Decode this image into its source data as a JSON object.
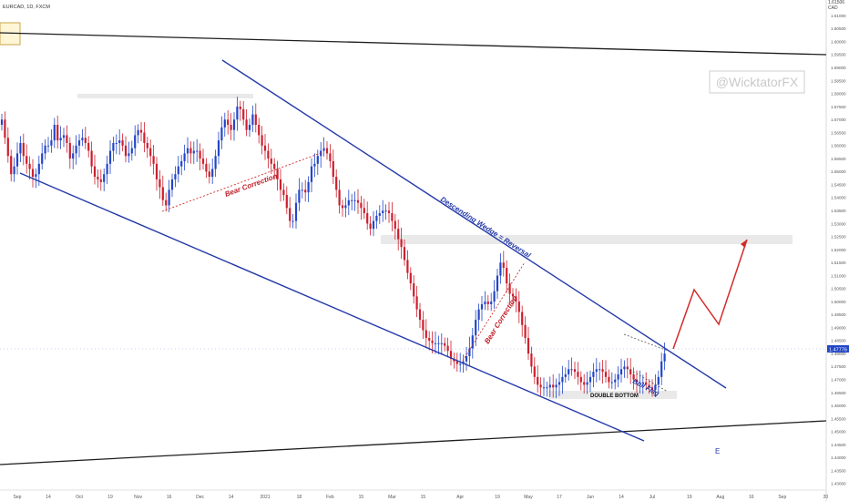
{
  "header": {
    "symbol": "EURCAD, 1D, FXCM"
  },
  "watermark": "@WicktatorFX",
  "price_axis": {
    "currency": "CAD",
    "current_price": "1.47776",
    "top_label": "1.61506"
  },
  "colors": {
    "bull": "#2346c7",
    "bear": "#cc1f2d",
    "wedge": "#2439a8",
    "projection": "#d22b2b",
    "annotation_blue": "#2439a8",
    "annotation_red": "#c0202a",
    "zone": "#e9e9e9",
    "watermark": "#c9c9c9"
  },
  "chart_data": {
    "type": "candlestick",
    "ylim": [
      1.4275,
      1.616
    ],
    "yticks": [
      1.43,
      1.435,
      1.44,
      1.445,
      1.45,
      1.455,
      1.46,
      1.465,
      1.47,
      1.475,
      1.48,
      1.485,
      1.49,
      1.495,
      1.5,
      1.505,
      1.51,
      1.515,
      1.52,
      1.525,
      1.53,
      1.535,
      1.54,
      1.545,
      1.55,
      1.555,
      1.56,
      1.565,
      1.57,
      1.575,
      1.58,
      1.585,
      1.59,
      1.595,
      1.6,
      1.605,
      1.61
    ],
    "ytick_labels": [
      "1.43000",
      "1.43500",
      "1.44000",
      "1.44500",
      "1.45000",
      "1.45500",
      "1.46000",
      "1.46500",
      "1.47000",
      "1.47500",
      "1.48000",
      "1.48500",
      "1.49000",
      "1.49500",
      "1.50000",
      "1.50500",
      "1.51000",
      "1.51500",
      "1.52000",
      "1.52500",
      "1.53000",
      "1.53500",
      "1.54000",
      "1.54500",
      "1.55000",
      "1.55500",
      "1.56000",
      "1.56500",
      "1.57000",
      "1.57500",
      "1.58000",
      "1.58500",
      "1.59000",
      "1.59500",
      "1.60000",
      "1.60500",
      "1.61000"
    ],
    "xticks": [
      {
        "label": "Sep",
        "bar": 5
      },
      {
        "label": "14",
        "bar": 15
      },
      {
        "label": "Oct",
        "bar": 25
      },
      {
        "label": "19",
        "bar": 35
      },
      {
        "label": "Nov",
        "bar": 44
      },
      {
        "label": "16",
        "bar": 54
      },
      {
        "label": "Dec",
        "bar": 64
      },
      {
        "label": "14",
        "bar": 74
      },
      {
        "label": "2021",
        "bar": 85
      },
      {
        "label": "18",
        "bar": 96
      },
      {
        "label": "Feb",
        "bar": 106
      },
      {
        "label": "15",
        "bar": 116
      },
      {
        "label": "Mar",
        "bar": 126
      },
      {
        "label": "15",
        "bar": 136
      },
      {
        "label": "Apr",
        "bar": 148
      },
      {
        "label": "19",
        "bar": 160
      },
      {
        "label": "May",
        "bar": 170
      },
      {
        "label": "17",
        "bar": 180
      },
      {
        "label": "Jun",
        "bar": 190
      },
      {
        "label": "14",
        "bar": 200
      },
      {
        "label": "Jul",
        "bar": 210
      },
      {
        "label": "19",
        "bar": 222
      },
      {
        "label": "Aug",
        "bar": 232
      },
      {
        "label": "16",
        "bar": 242
      },
      {
        "label": "Sep",
        "bar": 252
      },
      {
        "label": "20",
        "bar": 266
      }
    ],
    "closes": [
      1.57,
      1.563,
      1.556,
      1.549,
      1.552,
      1.557,
      1.561,
      1.556,
      1.553,
      1.551,
      1.548,
      1.549,
      1.553,
      1.557,
      1.56,
      1.56,
      1.562,
      1.568,
      1.562,
      1.563,
      1.564,
      1.561,
      1.555,
      1.557,
      1.56,
      1.562,
      1.563,
      1.561,
      1.558,
      1.552,
      1.548,
      1.547,
      1.546,
      1.549,
      1.553,
      1.558,
      1.561,
      1.561,
      1.562,
      1.56,
      1.556,
      1.557,
      1.559,
      1.564,
      1.566,
      1.565,
      1.561,
      1.559,
      1.556,
      1.553,
      1.547,
      1.544,
      1.539,
      1.537,
      1.543,
      1.547,
      1.549,
      1.552,
      1.554,
      1.557,
      1.559,
      1.557,
      1.558,
      1.558,
      1.555,
      1.553,
      1.55,
      1.548,
      1.551,
      1.556,
      1.562,
      1.567,
      1.57,
      1.568,
      1.566,
      1.57,
      1.575,
      1.574,
      1.57,
      1.566,
      1.568,
      1.572,
      1.568,
      1.564,
      1.56,
      1.558,
      1.555,
      1.553,
      1.551,
      1.547,
      1.543,
      1.541,
      1.536,
      1.531,
      1.531,
      1.538,
      1.543,
      1.543,
      1.542,
      1.546,
      1.552,
      1.553,
      1.556,
      1.558,
      1.559,
      1.557,
      1.554,
      1.548,
      1.543,
      1.537,
      1.536,
      1.537,
      1.539,
      1.539,
      1.539,
      1.538,
      1.536,
      1.534,
      1.53,
      1.528,
      1.531,
      1.533,
      1.534,
      1.535,
      1.535,
      1.534,
      1.531,
      1.528,
      1.524,
      1.521,
      1.516,
      1.511,
      1.507,
      1.502,
      1.497,
      1.493,
      1.489,
      1.486,
      1.485,
      1.484,
      1.484,
      1.484,
      1.484,
      1.483,
      1.481,
      1.478,
      1.477,
      1.476,
      1.476,
      1.477,
      1.479,
      1.482,
      1.487,
      1.493,
      1.497,
      1.499,
      1.5,
      1.499,
      1.5,
      1.504,
      1.51,
      1.515,
      1.513,
      1.507,
      1.503,
      1.502,
      1.5,
      1.496,
      1.491,
      1.486,
      1.48,
      1.475,
      1.471,
      1.468,
      1.467,
      1.467,
      1.467,
      1.468,
      1.467,
      1.468,
      1.469,
      1.471,
      1.472,
      1.474,
      1.474,
      1.473,
      1.471,
      1.469,
      1.468,
      1.469,
      1.471,
      1.473,
      1.474,
      1.474,
      1.473,
      1.471,
      1.469,
      1.469,
      1.47,
      1.472,
      1.474,
      1.475,
      1.474,
      1.472,
      1.47,
      1.469,
      1.469,
      1.469,
      1.468,
      1.467,
      1.466,
      1.468,
      1.471,
      1.477,
      1.48
    ]
  },
  "annotations": {
    "descending_wedge": "Descending Wedge = Reversal",
    "bear_correction_1": "Bear Correction",
    "bear_correction_2": "Bear Correction",
    "bull_flag": "Bull Flag",
    "double_bottom": "DOUBLE BOTTOM",
    "e_marker": "E"
  }
}
